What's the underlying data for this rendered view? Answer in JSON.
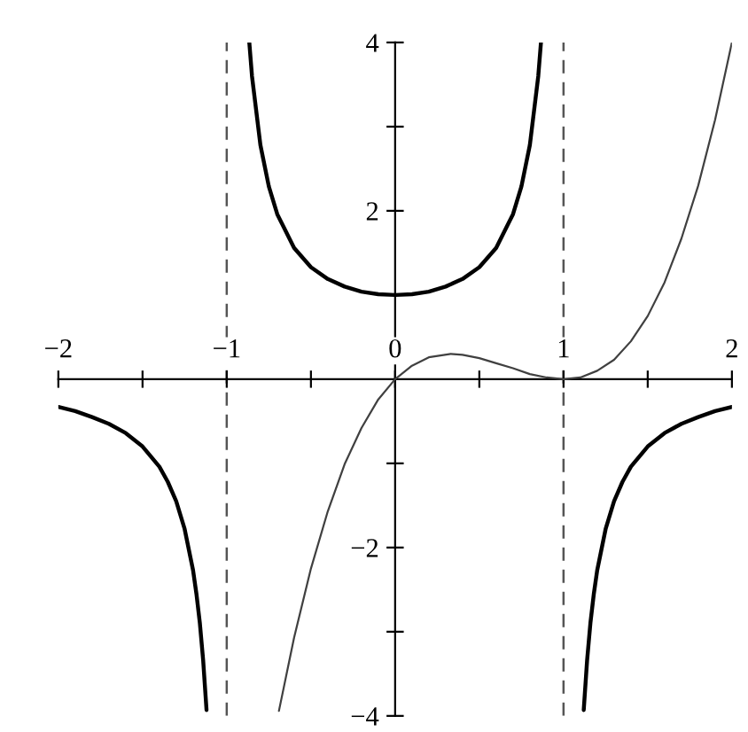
{
  "chart_data": {
    "type": "line",
    "xlim": [
      -2,
      2
    ],
    "ylim": [
      -4,
      4
    ],
    "xticks": [
      {
        "value": -2,
        "label": "−2"
      },
      {
        "value": -1.5,
        "label": null
      },
      {
        "value": -1,
        "label": "−1"
      },
      {
        "value": -0.5,
        "label": null
      },
      0,
      {
        "value": 0.5,
        "label": null
      },
      1,
      {
        "value": 1.5,
        "label": null
      },
      2
    ],
    "yticks": [
      {
        "value": -4,
        "label": "−4"
      },
      {
        "value": -3,
        "label": null
      },
      {
        "value": -2,
        "label": "−2"
      },
      {
        "value": -1,
        "label": null
      },
      {
        "value": 1,
        "label": null
      },
      2,
      {
        "value": 3,
        "label": null
      },
      4
    ],
    "ref_lines": [
      {
        "axis": "x",
        "value": -1,
        "color": "#555555",
        "line_style": "dashed"
      },
      {
        "axis": "x",
        "value": 1,
        "color": "#555555",
        "line_style": "dashed"
      }
    ],
    "series": [
      {
        "color": "#000000",
        "x": [
          -2,
          -1.9,
          -1.8,
          -1.7,
          -1.6,
          -1.5,
          -1.4,
          -1.35,
          -1.3,
          -1.25,
          -1.2,
          -1.18,
          -1.16,
          -1.14,
          -1.12
        ],
        "values": [
          -0.33,
          -0.38,
          -0.45,
          -0.53,
          -0.64,
          -0.8,
          -1.04,
          -1.22,
          -1.45,
          -1.78,
          -2.27,
          -2.55,
          -2.89,
          -3.34,
          -3.93
        ]
      },
      {
        "color": "#000000",
        "x": [
          -0.866,
          -0.85,
          -0.8,
          -0.75,
          -0.7,
          -0.6,
          -0.5,
          -0.4,
          -0.3,
          -0.2,
          -0.1,
          0,
          0.1,
          0.2,
          0.3,
          0.4,
          0.5,
          0.6,
          0.7,
          0.75,
          0.8,
          0.85,
          0.866
        ],
        "values": [
          4,
          3.6,
          2.78,
          2.29,
          1.96,
          1.56,
          1.33,
          1.19,
          1.1,
          1.04,
          1.01,
          1,
          1.01,
          1.04,
          1.1,
          1.19,
          1.33,
          1.56,
          1.96,
          2.29,
          2.78,
          3.6,
          4
        ]
      },
      {
        "color": "#000000",
        "x": [
          1.12,
          1.14,
          1.16,
          1.18,
          1.2,
          1.25,
          1.3,
          1.35,
          1.4,
          1.5,
          1.6,
          1.7,
          1.8,
          1.9,
          2
        ],
        "values": [
          -3.93,
          -3.34,
          -2.89,
          -2.55,
          -2.27,
          -1.78,
          -1.45,
          -1.22,
          -1.04,
          -0.8,
          -0.64,
          -0.53,
          -0.45,
          -0.38,
          -0.33
        ]
      },
      {
        "color": "#404040",
        "x": [
          -0.69,
          -0.6,
          -0.5,
          -0.4,
          -0.3,
          -0.2,
          -0.1,
          0,
          0.1,
          0.2,
          0.33,
          0.4,
          0.5,
          0.6,
          0.7,
          0.8,
          0.9,
          1,
          1.1,
          1.2,
          1.3,
          1.4,
          1.5,
          1.6,
          1.7,
          1.8,
          1.9,
          2
        ],
        "values": [
          -3.94,
          -3.07,
          -2.25,
          -1.57,
          -1.01,
          -0.58,
          -0.24,
          0,
          0.16,
          0.26,
          0.3,
          0.29,
          0.25,
          0.19,
          0.13,
          0.06,
          0.02,
          0,
          0.02,
          0.1,
          0.23,
          0.45,
          0.75,
          1.15,
          1.67,
          2.3,
          3.08,
          4
        ]
      }
    ]
  }
}
